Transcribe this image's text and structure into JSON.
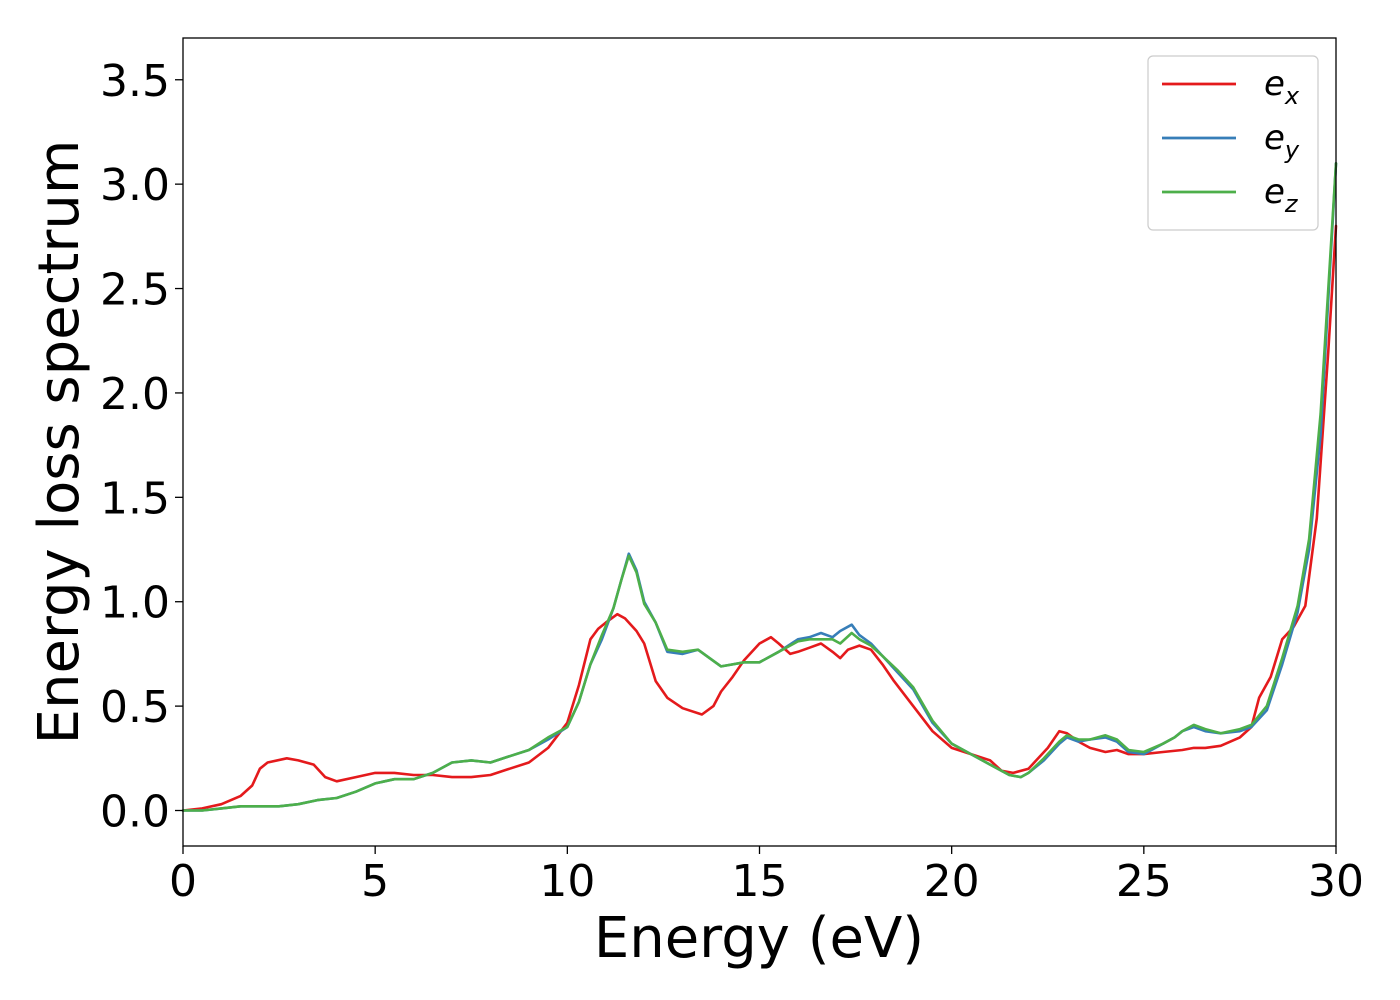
{
  "chart_data": {
    "type": "line",
    "title": "",
    "xlabel": "Energy (eV)",
    "ylabel": "Energy loss spectrum",
    "xlim": [
      0,
      30
    ],
    "ylim": [
      -0.17,
      3.7
    ],
    "xticks": [
      0,
      5,
      10,
      15,
      20,
      25,
      30
    ],
    "xtick_labels": [
      "0",
      "5",
      "10",
      "15",
      "20",
      "25",
      "30"
    ],
    "yticks": [
      0.0,
      0.5,
      1.0,
      1.5,
      2.0,
      2.5,
      3.0,
      3.5
    ],
    "ytick_labels": [
      "0.0",
      "0.5",
      "1.0",
      "1.5",
      "2.0",
      "2.5",
      "3.0",
      "3.5"
    ],
    "grid": false,
    "legend_position": "top-right",
    "series": [
      {
        "name": "e_x",
        "label_base": "e",
        "label_sub": "x",
        "color": "#e41a1c",
        "x": [
          0,
          0.5,
          1.0,
          1.5,
          1.8,
          2.0,
          2.2,
          2.7,
          3.0,
          3.4,
          3.7,
          4.0,
          4.5,
          5.0,
          5.5,
          6.0,
          6.5,
          7.0,
          7.5,
          8.0,
          8.5,
          9.0,
          9.5,
          10.0,
          10.3,
          10.6,
          10.8,
          11.0,
          11.3,
          11.5,
          11.8,
          12.0,
          12.3,
          12.6,
          13.0,
          13.5,
          13.8,
          14.0,
          14.3,
          14.6,
          15.0,
          15.3,
          15.5,
          15.8,
          16.0,
          16.3,
          16.6,
          16.9,
          17.1,
          17.3,
          17.6,
          17.9,
          18.2,
          18.5,
          19.0,
          19.5,
          20.0,
          20.5,
          21.0,
          21.3,
          21.6,
          22.0,
          22.5,
          22.8,
          23.0,
          23.3,
          23.6,
          24.0,
          24.3,
          24.6,
          25.0,
          25.5,
          26.0,
          26.3,
          26.6,
          27.0,
          27.5,
          27.8,
          28.0,
          28.3,
          28.6,
          28.9,
          29.2,
          29.5,
          29.8,
          30.0
        ],
        "y": [
          0.0,
          0.01,
          0.03,
          0.07,
          0.12,
          0.2,
          0.23,
          0.25,
          0.24,
          0.22,
          0.16,
          0.14,
          0.16,
          0.18,
          0.18,
          0.17,
          0.17,
          0.16,
          0.16,
          0.17,
          0.2,
          0.23,
          0.3,
          0.42,
          0.6,
          0.82,
          0.87,
          0.9,
          0.94,
          0.92,
          0.86,
          0.8,
          0.62,
          0.54,
          0.49,
          0.46,
          0.5,
          0.57,
          0.64,
          0.72,
          0.8,
          0.83,
          0.8,
          0.75,
          0.76,
          0.78,
          0.8,
          0.76,
          0.73,
          0.77,
          0.79,
          0.77,
          0.7,
          0.62,
          0.5,
          0.38,
          0.3,
          0.27,
          0.24,
          0.19,
          0.18,
          0.2,
          0.3,
          0.38,
          0.37,
          0.33,
          0.3,
          0.28,
          0.29,
          0.27,
          0.27,
          0.28,
          0.29,
          0.3,
          0.3,
          0.31,
          0.35,
          0.4,
          0.54,
          0.64,
          0.82,
          0.88,
          0.98,
          1.4,
          2.2,
          2.8
        ]
      },
      {
        "name": "e_y",
        "label_base": "e",
        "label_sub": "y",
        "color": "#377eb8",
        "x": [
          0,
          0.5,
          1.0,
          1.5,
          2.0,
          2.5,
          3.0,
          3.5,
          4.0,
          4.5,
          5.0,
          5.5,
          6.0,
          6.5,
          7.0,
          7.5,
          8.0,
          8.5,
          9.0,
          9.5,
          10.0,
          10.3,
          10.6,
          10.9,
          11.2,
          11.4,
          11.6,
          11.8,
          12.0,
          12.3,
          12.6,
          13.0,
          13.4,
          13.7,
          14.0,
          14.3,
          14.6,
          15.0,
          15.5,
          16.0,
          16.3,
          16.6,
          16.9,
          17.1,
          17.4,
          17.6,
          17.9,
          18.2,
          18.6,
          19.0,
          19.5,
          20.0,
          20.5,
          21.0,
          21.5,
          21.8,
          22.0,
          22.4,
          22.8,
          23.0,
          23.3,
          23.6,
          24.0,
          24.3,
          24.6,
          25.0,
          25.5,
          25.8,
          26.0,
          26.3,
          26.6,
          27.0,
          27.5,
          27.8,
          28.2,
          28.6,
          29.0,
          29.3,
          29.6,
          30.0
        ],
        "y": [
          0.0,
          0.0,
          0.01,
          0.02,
          0.02,
          0.02,
          0.03,
          0.05,
          0.06,
          0.09,
          0.13,
          0.15,
          0.15,
          0.18,
          0.23,
          0.24,
          0.23,
          0.26,
          0.29,
          0.34,
          0.4,
          0.52,
          0.7,
          0.82,
          0.97,
          1.1,
          1.23,
          1.15,
          1.0,
          0.9,
          0.76,
          0.75,
          0.77,
          0.73,
          0.69,
          0.7,
          0.71,
          0.71,
          0.76,
          0.82,
          0.83,
          0.85,
          0.83,
          0.86,
          0.89,
          0.84,
          0.8,
          0.74,
          0.66,
          0.58,
          0.42,
          0.32,
          0.27,
          0.22,
          0.17,
          0.16,
          0.18,
          0.24,
          0.32,
          0.35,
          0.33,
          0.34,
          0.35,
          0.33,
          0.28,
          0.27,
          0.32,
          0.35,
          0.38,
          0.4,
          0.38,
          0.37,
          0.38,
          0.4,
          0.48,
          0.7,
          0.95,
          1.25,
          1.8,
          3.1
        ]
      },
      {
        "name": "e_z",
        "label_base": "e",
        "label_sub": "z",
        "color": "#4daf4a",
        "x": [
          0,
          0.5,
          1.0,
          1.5,
          2.0,
          2.5,
          3.0,
          3.5,
          4.0,
          4.5,
          5.0,
          5.5,
          6.0,
          6.5,
          7.0,
          7.5,
          8.0,
          8.5,
          9.0,
          9.5,
          10.0,
          10.3,
          10.6,
          10.9,
          11.2,
          11.4,
          11.6,
          11.8,
          12.0,
          12.3,
          12.6,
          13.0,
          13.4,
          13.7,
          14.0,
          14.3,
          14.6,
          15.0,
          15.5,
          16.0,
          16.3,
          16.6,
          16.9,
          17.1,
          17.4,
          17.6,
          17.9,
          18.2,
          18.6,
          19.0,
          19.5,
          20.0,
          20.5,
          21.0,
          21.5,
          21.8,
          22.0,
          22.4,
          22.8,
          23.0,
          23.3,
          23.6,
          24.0,
          24.3,
          24.6,
          25.0,
          25.5,
          25.8,
          26.0,
          26.3,
          26.6,
          27.0,
          27.5,
          27.8,
          28.2,
          28.6,
          29.0,
          29.3,
          29.6,
          30.0
        ],
        "y": [
          0.0,
          0.0,
          0.01,
          0.02,
          0.02,
          0.02,
          0.03,
          0.05,
          0.06,
          0.09,
          0.13,
          0.15,
          0.15,
          0.18,
          0.23,
          0.24,
          0.23,
          0.26,
          0.29,
          0.35,
          0.4,
          0.52,
          0.7,
          0.84,
          0.97,
          1.1,
          1.22,
          1.14,
          0.99,
          0.9,
          0.77,
          0.76,
          0.77,
          0.73,
          0.69,
          0.7,
          0.71,
          0.71,
          0.76,
          0.81,
          0.82,
          0.82,
          0.82,
          0.8,
          0.85,
          0.82,
          0.79,
          0.74,
          0.67,
          0.59,
          0.43,
          0.32,
          0.27,
          0.22,
          0.17,
          0.16,
          0.18,
          0.25,
          0.33,
          0.36,
          0.34,
          0.34,
          0.36,
          0.34,
          0.29,
          0.28,
          0.32,
          0.35,
          0.38,
          0.41,
          0.39,
          0.37,
          0.39,
          0.41,
          0.5,
          0.73,
          0.98,
          1.3,
          1.9,
          3.1
        ]
      }
    ]
  }
}
